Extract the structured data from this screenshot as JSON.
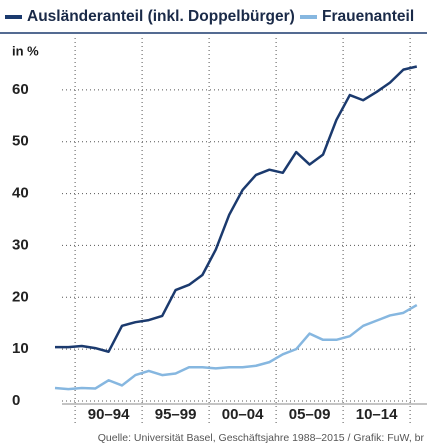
{
  "chart_data": {
    "type": "line",
    "y_unit_label": "in %",
    "source": "Quelle: Universität Basel, Geschäftsjahre 1988–2015 / Grafik: FuW, br",
    "categories": [
      null,
      null,
      null,
      null,
      null,
      null,
      null,
      null,
      null,
      null,
      null,
      null,
      null,
      null,
      null,
      null,
      null,
      null,
      null,
      null,
      null,
      null,
      null,
      null,
      null,
      null,
      null,
      null
    ],
    "x_groups": [
      "90–94",
      "95–99",
      "00–04",
      "05–09",
      "10–14"
    ],
    "series": [
      {
        "name": "Ausländeranteil (inkl. Doppelbürger)",
        "color": "#1b3a6e",
        "values": [
          10.4,
          10.4,
          10.6,
          10.2,
          9.5,
          14.5,
          15.2,
          15.6,
          16.4,
          21.4,
          22.4,
          24.3,
          29.2,
          35.9,
          40.7,
          43.6,
          44.6,
          44,
          48,
          45.6,
          47.5,
          54.2,
          59,
          58,
          59.6,
          61.4,
          63.9,
          64.5
        ]
      },
      {
        "name": "Frauenanteil",
        "color": "#86b7e0",
        "values": [
          2.5,
          2.3,
          2.5,
          2.4,
          4,
          3,
          5,
          5.8,
          5,
          5.3,
          6.5,
          6.5,
          6.3,
          6.5,
          6.5,
          6.8,
          7.5,
          9,
          10,
          13,
          11.8,
          11.8,
          12.5,
          14.5,
          15.5,
          16.5,
          17,
          18.5
        ]
      }
    ],
    "ylim": [
      0,
      70
    ],
    "yticks": [
      0,
      10,
      20,
      30,
      40,
      50,
      60
    ],
    "grid": true
  }
}
